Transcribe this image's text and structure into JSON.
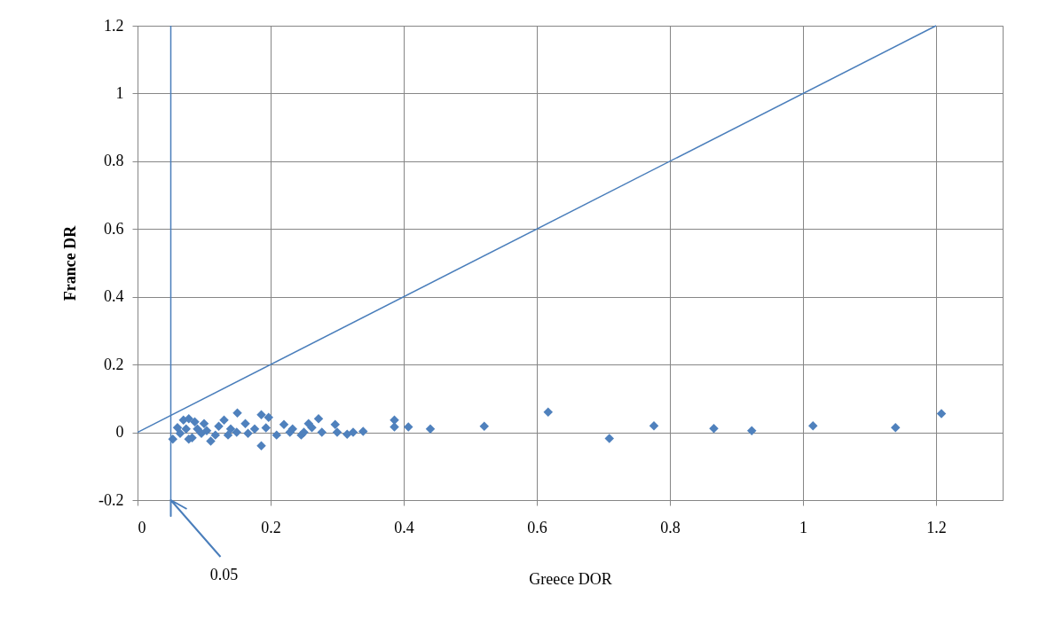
{
  "chart_data": {
    "type": "scatter",
    "xlabel": "Greece DOR",
    "ylabel": "France DR",
    "xlim": [
      0,
      1.3
    ],
    "ylim": [
      -0.2,
      1.2
    ],
    "xticks": [
      0,
      0.2,
      0.4,
      0.6,
      0.8,
      1,
      1.2
    ],
    "yticks": [
      -0.2,
      0,
      0.2,
      0.4,
      0.6,
      0.8,
      1,
      1.2
    ],
    "grid": true,
    "marker": "diamond",
    "series": [
      {
        "color": "#4f81bd",
        "x": [
          0.053,
          0.056,
          0.06,
          0.064,
          0.069,
          0.073,
          0.077,
          0.077,
          0.082,
          0.086,
          0.09,
          0.096,
          0.1,
          0.104,
          0.11,
          0.117,
          0.122,
          0.13,
          0.136,
          0.14,
          0.149,
          0.15,
          0.162,
          0.166,
          0.176,
          0.186,
          0.186,
          0.193,
          0.197,
          0.209,
          0.22,
          0.229,
          0.233,
          0.246,
          0.25,
          0.257,
          0.262,
          0.272,
          0.277,
          0.297,
          0.3,
          0.315,
          0.324,
          0.339,
          0.386,
          0.386,
          0.407,
          0.44,
          0.521,
          0.617,
          0.709,
          0.776,
          0.866,
          0.923,
          1.015,
          1.139,
          1.208
        ],
        "values": [
          -0.02,
          null,
          0.014,
          -0.003,
          0.036,
          0.01,
          0.04,
          -0.02,
          -0.016,
          0.031,
          0.01,
          -0.003,
          0.026,
          0.005,
          -0.026,
          -0.008,
          0.018,
          0.036,
          -0.008,
          0.01,
          0.0,
          0.057,
          0.026,
          -0.003,
          0.01,
          0.052,
          -0.04,
          0.013,
          0.044,
          -0.008,
          0.023,
          0.0,
          0.01,
          -0.008,
          0.0,
          0.026,
          0.014,
          0.04,
          0.0,
          0.023,
          0.0,
          -0.006,
          0.0,
          0.003,
          0.036,
          0.016,
          0.016,
          0.01,
          0.018,
          0.06,
          -0.018,
          0.019,
          0.011,
          0.005,
          0.019,
          0.014,
          0.055
        ]
      },
      {
        "type": "line",
        "color": "#4a7ebb",
        "marker": "none",
        "x": [
          0,
          1.2
        ],
        "values": [
          0,
          1.2
        ]
      }
    ],
    "ref_lines": [
      {
        "axis": "x",
        "value": 0.05,
        "color": "#4a7ebb"
      }
    ],
    "annotations": [
      "0.05"
    ]
  }
}
